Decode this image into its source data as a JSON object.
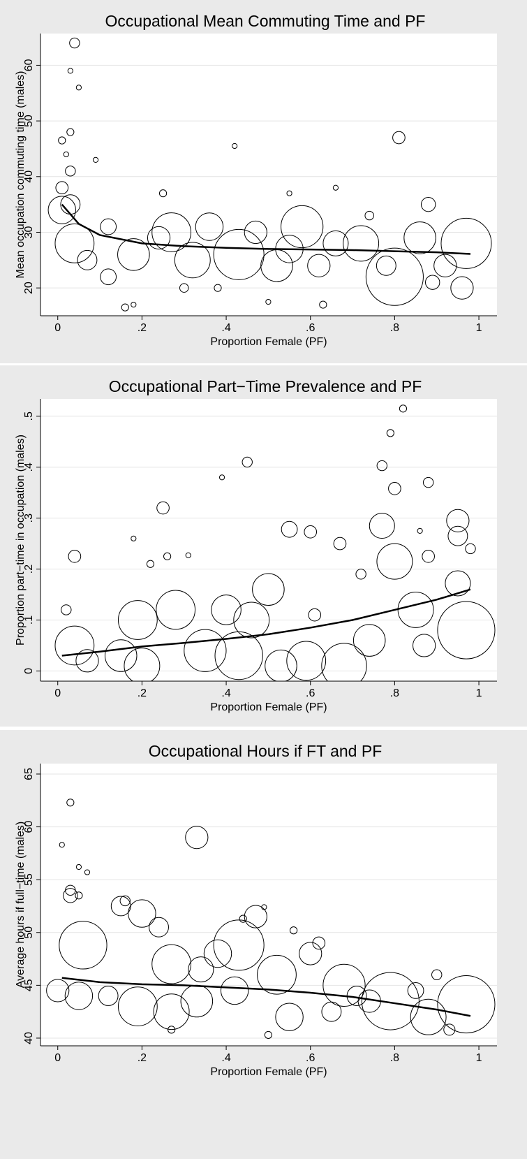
{
  "chart_data": [
    {
      "type": "scatter",
      "title": "Occupational Mean Commuting Time and PF",
      "xlabel": "Proportion Female (PF)",
      "ylabel": "Mean occupation commuting time (males)",
      "x": [
        0.04,
        0.03,
        0.05,
        0.81,
        0.42,
        0.01,
        0.03,
        0.02,
        0.09,
        0.03,
        0.01,
        0.01,
        0.03,
        0.04,
        0.07,
        0.12,
        0.18,
        0.24,
        0.27,
        0.32,
        0.36,
        0.43,
        0.47,
        0.52,
        0.55,
        0.58,
        0.62,
        0.66,
        0.72,
        0.78,
        0.8,
        0.88,
        0.86,
        0.92,
        0.97,
        0.96,
        0.16,
        0.63,
        0.66,
        0.55,
        0.25,
        0.18,
        0.38,
        0.74,
        0.89,
        0.12,
        0.3,
        0.5
      ],
      "values": [
        64,
        59,
        56,
        47,
        45.5,
        46.5,
        48,
        44,
        43,
        41,
        38,
        34,
        35,
        28,
        25,
        31,
        26,
        29,
        30,
        25,
        31,
        26,
        30,
        24,
        27,
        31,
        24,
        28,
        28,
        24,
        22,
        35,
        29,
        24,
        28,
        20,
        16.5,
        17,
        38,
        37,
        37,
        17,
        20,
        33,
        21,
        22,
        20,
        17.5
      ],
      "sizes": [
        4,
        1,
        1,
        6,
        1,
        2,
        2,
        1,
        1,
        4,
        6,
        30,
        15,
        60,
        15,
        10,
        40,
        20,
        60,
        50,
        30,
        100,
        20,
        40,
        30,
        70,
        20,
        25,
        50,
        15,
        130,
        8,
        40,
        20,
        100,
        20,
        2,
        2,
        1,
        1,
        2,
        1,
        2,
        3,
        8,
        10,
        3,
        1
      ],
      "fit_x": [
        0.01,
        0.05,
        0.1,
        0.2,
        0.3,
        0.4,
        0.5,
        0.6,
        0.7,
        0.8,
        0.9,
        0.98
      ],
      "fit_values": [
        35,
        31.5,
        29.5,
        28,
        27.5,
        27.2,
        27,
        26.9,
        26.8,
        26.6,
        26.4,
        26.1
      ],
      "xlim": [
        -0.041,
        1.043
      ],
      "ylim": [
        15,
        65.7
      ],
      "xticks": [
        0,
        {
          "value": 0.2,
          "label": ".2"
        },
        {
          "value": 0.4,
          "label": ".4"
        },
        {
          "value": 0.6,
          "label": ".6"
        },
        {
          "value": 0.8,
          "label": ".8"
        },
        1
      ],
      "yticks": [
        20,
        30,
        40,
        50,
        60
      ],
      "grid": true
    },
    {
      "type": "scatter",
      "title": "Occupational Part−Time Prevalence and PF",
      "xlabel": "Proportion Female (PF)",
      "ylabel": "Proportion part−time in occupation (males)",
      "x": [
        0.82,
        0.79,
        0.45,
        0.77,
        0.39,
        0.88,
        0.8,
        0.25,
        0.77,
        0.95,
        0.04,
        0.6,
        0.55,
        0.67,
        0.95,
        0.8,
        0.5,
        0.95,
        0.19,
        0.28,
        0.4,
        0.46,
        0.04,
        0.07,
        0.15,
        0.2,
        0.35,
        0.43,
        0.53,
        0.59,
        0.68,
        0.74,
        0.85,
        0.87,
        0.97,
        0.61,
        0.72,
        0.02,
        0.22,
        0.26,
        0.31,
        0.18,
        0.86,
        0.88,
        0.98
      ],
      "values": [
        0.515,
        0.467,
        0.41,
        0.403,
        0.38,
        0.37,
        0.358,
        0.32,
        0.285,
        0.295,
        0.225,
        0.273,
        0.278,
        0.25,
        0.265,
        0.215,
        0.16,
        0.172,
        0.1,
        0.12,
        0.12,
        0.1,
        0.05,
        0.02,
        0.03,
        0.01,
        0.04,
        0.03,
        0.01,
        0.02,
        0.01,
        0.06,
        0.12,
        0.05,
        0.08,
        0.11,
        0.19,
        0.12,
        0.21,
        0.225,
        0.227,
        0.26,
        0.275,
        0.225,
        0.24
      ],
      "sizes": [
        2,
        2,
        4,
        4,
        1,
        4,
        6,
        6,
        25,
        20,
        6,
        6,
        10,
        6,
        15,
        50,
        40,
        25,
        60,
        60,
        35,
        50,
        60,
        20,
        40,
        50,
        70,
        90,
        40,
        60,
        80,
        40,
        50,
        20,
        130,
        6,
        4,
        4,
        2,
        2,
        1,
        1,
        1,
        6,
        4
      ],
      "fit_x": [
        0.01,
        0.1,
        0.2,
        0.3,
        0.4,
        0.5,
        0.6,
        0.7,
        0.8,
        0.9,
        0.98
      ],
      "fit_values": [
        0.03,
        0.038,
        0.048,
        0.055,
        0.063,
        0.072,
        0.085,
        0.1,
        0.12,
        0.14,
        0.16
      ],
      "xlim": [
        -0.041,
        1.043
      ],
      "ylim": [
        -0.02,
        0.534
      ],
      "xticks": [
        0,
        {
          "value": 0.2,
          "label": ".2"
        },
        {
          "value": 0.4,
          "label": ".4"
        },
        {
          "value": 0.6,
          "label": ".6"
        },
        {
          "value": 0.8,
          "label": ".8"
        },
        1
      ],
      "yticks": [
        0,
        {
          "value": 0.1,
          "label": ".1"
        },
        {
          "value": 0.2,
          "label": ".2"
        },
        {
          "value": 0.3,
          "label": ".3"
        },
        {
          "value": 0.4,
          "label": ".4"
        },
        {
          "value": 0.5,
          "label": ".5"
        }
      ],
      "grid": true
    },
    {
      "type": "scatter",
      "title": "Occupational Hours if FT and PF",
      "xlabel": "Proportion Female (PF)",
      "ylabel": "Average hours if full−time (males)",
      "x": [
        0.03,
        0.01,
        0.05,
        0.07,
        0.33,
        0.03,
        0.03,
        0.05,
        0.06,
        0.15,
        0.2,
        0.27,
        0.24,
        0.43,
        0.47,
        0.38,
        0.52,
        0.6,
        0.68,
        0.79,
        0.97,
        0.88,
        0.19,
        0.27,
        0.33,
        0.42,
        0.05,
        0.0,
        0.12,
        0.55,
        0.65,
        0.74,
        0.93,
        0.5,
        0.27,
        0.56,
        0.49,
        0.62,
        0.9,
        0.16,
        0.34,
        0.44,
        0.71,
        0.85
      ],
      "values": [
        62.3,
        58.3,
        56.2,
        55.7,
        59,
        54,
        53.5,
        53.5,
        48.8,
        52.5,
        51.8,
        47,
        50.5,
        48.8,
        51.5,
        48,
        46,
        48,
        45,
        43.5,
        43.2,
        42,
        43,
        42.5,
        43.5,
        44.5,
        44,
        44.5,
        44,
        42,
        42.5,
        43.5,
        40.8,
        40.3,
        40.8,
        50.2,
        52.4,
        49,
        46,
        53,
        46.5,
        51.3,
        44,
        44.5
      ],
      "sizes": [
        2,
        1,
        1,
        1,
        20,
        4,
        8,
        2,
        90,
        15,
        30,
        60,
        15,
        100,
        20,
        30,
        60,
        20,
        70,
        130,
        130,
        50,
        60,
        50,
        40,
        30,
        30,
        20,
        15,
        30,
        15,
        20,
        5,
        2,
        2,
        2,
        1,
        6,
        4,
        4,
        25,
        2,
        15,
        10
      ],
      "fit_x": [
        0.01,
        0.1,
        0.2,
        0.3,
        0.4,
        0.5,
        0.6,
        0.7,
        0.8,
        0.9,
        0.98
      ],
      "fit_values": [
        45.7,
        45.3,
        45.1,
        45,
        44.8,
        44.6,
        44.3,
        43.9,
        43.3,
        42.7,
        42.1
      ],
      "xlim": [
        -0.041,
        1.043
      ],
      "ylim": [
        39.27,
        65.99
      ],
      "xticks": [
        0,
        {
          "value": 0.2,
          "label": ".2"
        },
        {
          "value": 0.4,
          "label": ".4"
        },
        {
          "value": 0.6,
          "label": ".6"
        },
        {
          "value": 0.8,
          "label": ".8"
        },
        1
      ],
      "yticks": [
        40,
        45,
        50,
        55,
        60,
        65
      ],
      "grid": true
    }
  ]
}
